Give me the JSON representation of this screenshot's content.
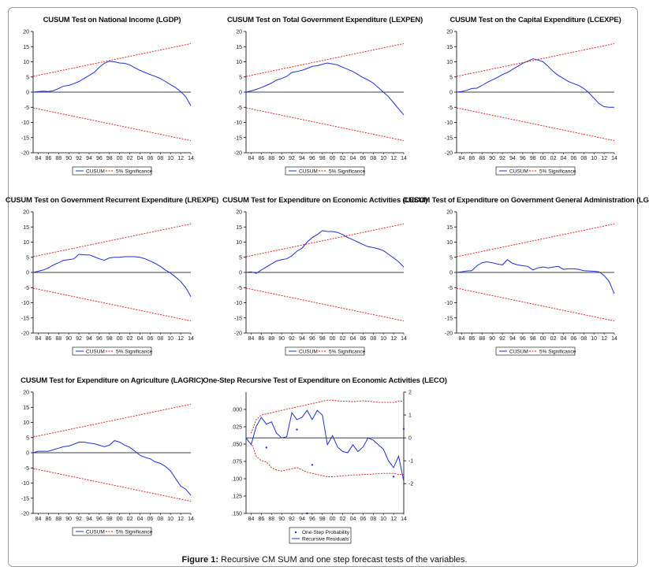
{
  "figure": {
    "caption_bold": "Figure 1:",
    "caption_text": " Recursive CM SUM and one step forecast tests of the variables."
  },
  "colors": {
    "cusum": "#1f2fd6",
    "bands": "#e01010",
    "axis": "#000000"
  },
  "years": [
    "84",
    "86",
    "88",
    "90",
    "92",
    "94",
    "96",
    "98",
    "00",
    "02",
    "04",
    "06",
    "08",
    "10",
    "12",
    "14"
  ],
  "chart_data": [
    {
      "type": "line",
      "title": "CUSUM Test on National Income (LGDP)",
      "ylim": [
        -20,
        20
      ],
      "yticks": [
        -20,
        -15,
        -10,
        -5,
        0,
        5,
        10,
        15,
        20
      ],
      "x": [
        1983,
        2014
      ],
      "legend": [
        "CUSUM",
        "5% Significance"
      ],
      "series": [
        {
          "name": "CUSUM",
          "x": [
            1983,
            1984,
            1985,
            1986,
            1987,
            1988,
            1989,
            1990,
            1991,
            1992,
            1993,
            1994,
            1995,
            1996,
            1997,
            1998,
            1999,
            2000,
            2001,
            2002,
            2003,
            2004,
            2005,
            2006,
            2007,
            2008,
            2009,
            2010,
            2011,
            2012,
            2013,
            2014
          ],
          "y": [
            0,
            0.2,
            0.3,
            0.2,
            0.5,
            1.2,
            2.0,
            2.2,
            2.8,
            3.5,
            4.5,
            5.5,
            6.5,
            8.2,
            9.5,
            10.2,
            10,
            9.6,
            9.5,
            9,
            8,
            7.2,
            6.5,
            5.8,
            5.2,
            4.5,
            3.5,
            2.5,
            1.5,
            0.2,
            -1.5,
            -4.5
          ]
        },
        {
          "name": "5% Significance upper",
          "x": [
            1983,
            2014
          ],
          "y": [
            5.2,
            16
          ]
        },
        {
          "name": "5% Significance lower",
          "x": [
            1983,
            2014
          ],
          "y": [
            -5.2,
            -16
          ]
        }
      ]
    },
    {
      "type": "line",
      "title": "CUSUM Test on Total Government Expenditure (LEXPEN)",
      "ylim": [
        -20,
        20
      ],
      "yticks": [
        -20,
        -15,
        -10,
        -5,
        0,
        5,
        10,
        15,
        20
      ],
      "x": [
        1983,
        2014
      ],
      "legend": [
        "CUSUM",
        "5% Significance"
      ],
      "series": [
        {
          "name": "CUSUM",
          "x": [
            1983,
            1984,
            1985,
            1986,
            1987,
            1988,
            1989,
            1990,
            1991,
            1992,
            1993,
            1994,
            1995,
            1996,
            1997,
            1998,
            1999,
            2000,
            2001,
            2002,
            2003,
            2004,
            2005,
            2006,
            2007,
            2008,
            2009,
            2010,
            2011,
            2012,
            2013,
            2014
          ],
          "y": [
            0,
            0.4,
            0.9,
            1.5,
            2.2,
            3.0,
            4.0,
            4.5,
            5.2,
            6.5,
            6.8,
            7.2,
            7.8,
            8.5,
            8.7,
            9.2,
            9.6,
            9.3,
            9,
            8.2,
            7.5,
            6.8,
            5.8,
            4.8,
            4,
            3,
            1.5,
            0,
            -1.5,
            -3.5,
            -5.5,
            -7.5
          ]
        },
        {
          "name": "5% Significance upper",
          "x": [
            1983,
            2014
          ],
          "y": [
            5.2,
            16
          ]
        },
        {
          "name": "5% Significance lower",
          "x": [
            1983,
            2014
          ],
          "y": [
            -5.2,
            -16
          ]
        }
      ]
    },
    {
      "type": "line",
      "title": "CUSUM Test on the Capital Expenditure (LCEXPE)",
      "ylim": [
        -20,
        20
      ],
      "yticks": [
        -20,
        -15,
        -10,
        -5,
        0,
        5,
        10,
        15,
        20
      ],
      "x": [
        1983,
        2014
      ],
      "legend": [
        "CUSUM",
        "5% Significance"
      ],
      "series": [
        {
          "name": "CUSUM",
          "x": [
            1983,
            1984,
            1985,
            1986,
            1987,
            1988,
            1989,
            1990,
            1991,
            1992,
            1993,
            1994,
            1995,
            1996,
            1997,
            1998,
            1999,
            2000,
            2001,
            2002,
            2003,
            2004,
            2005,
            2006,
            2007,
            2008,
            2009,
            2010,
            2011,
            2012,
            2013,
            2014
          ],
          "y": [
            0,
            0.2,
            0.6,
            1.2,
            1.3,
            2.2,
            3.2,
            4.0,
            4.8,
            5.8,
            6.5,
            7.5,
            8.5,
            9.5,
            10.2,
            11,
            10.6,
            10,
            8.5,
            6.8,
            5.5,
            4.5,
            3.5,
            2.8,
            2.2,
            1.2,
            -0.2,
            -2,
            -3.8,
            -4.8,
            -5,
            -5
          ]
        },
        {
          "name": "5% Significance upper",
          "x": [
            1983,
            2014
          ],
          "y": [
            5.2,
            16
          ]
        },
        {
          "name": "5% Significance lower",
          "x": [
            1983,
            2014
          ],
          "y": [
            -5.2,
            -16
          ]
        }
      ]
    },
    {
      "type": "line",
      "title": "CUSUM Test on Government Recurrent Expenditure (LREXPE)",
      "ylim": [
        -20,
        20
      ],
      "yticks": [
        -20,
        -15,
        -10,
        -5,
        0,
        5,
        10,
        15,
        20
      ],
      "x": [
        1983,
        2014
      ],
      "legend": [
        "CUSUM",
        "5% Significance"
      ],
      "series": [
        {
          "name": "CUSUM",
          "x": [
            1983,
            1984,
            1985,
            1986,
            1987,
            1988,
            1989,
            1990,
            1991,
            1992,
            1993,
            1994,
            1995,
            1996,
            1997,
            1998,
            1999,
            2000,
            2001,
            2002,
            2003,
            2004,
            2005,
            2006,
            2007,
            2008,
            2009,
            2010,
            2011,
            2012,
            2013,
            2014
          ],
          "y": [
            0,
            0.4,
            0.8,
            1.5,
            2.5,
            3.2,
            4.0,
            4.2,
            4.5,
            6.0,
            5.8,
            5.8,
            5.2,
            4.5,
            4,
            4.8,
            5,
            5,
            5.2,
            5.2,
            5.2,
            5,
            4.5,
            3.8,
            3,
            2,
            0.8,
            -0.2,
            -1.5,
            -3,
            -5,
            -8
          ]
        },
        {
          "name": "5% Significance upper",
          "x": [
            1983,
            2014
          ],
          "y": [
            5.2,
            16
          ]
        },
        {
          "name": "5% Significance lower",
          "x": [
            1983,
            2014
          ],
          "y": [
            -5.2,
            -16
          ]
        }
      ]
    },
    {
      "type": "line",
      "title": "CUSUM Test for Expenditure on Economic Activities (LECO)",
      "ylim": [
        -20,
        20
      ],
      "yticks": [
        -20,
        -15,
        -10,
        -5,
        0,
        5,
        10,
        15,
        20
      ],
      "x": [
        1983,
        2014
      ],
      "legend": [
        "CUSUM",
        "5% Significance"
      ],
      "series": [
        {
          "name": "CUSUM",
          "x": [
            1983,
            1984,
            1985,
            1986,
            1987,
            1988,
            1989,
            1990,
            1991,
            1992,
            1993,
            1994,
            1995,
            1996,
            1997,
            1998,
            1999,
            2000,
            2001,
            2002,
            2003,
            2004,
            2005,
            2006,
            2007,
            2008,
            2009,
            2010,
            2011,
            2012,
            2013,
            2014
          ],
          "y": [
            0,
            0.2,
            -0.3,
            0.8,
            1.8,
            2.8,
            3.8,
            4.2,
            4.5,
            5.5,
            7,
            8,
            10,
            11.5,
            12.5,
            13.8,
            13.5,
            13.5,
            13.2,
            12.5,
            11.5,
            10.8,
            10,
            9.2,
            8.5,
            8.2,
            7.8,
            7.2,
            6,
            4.8,
            3.5,
            1.8
          ]
        },
        {
          "name": "5% Significance upper",
          "x": [
            1983,
            2014
          ],
          "y": [
            5.2,
            16
          ]
        },
        {
          "name": "5% Significance lower",
          "x": [
            1983,
            2014
          ],
          "y": [
            -5.2,
            -16
          ]
        }
      ]
    },
    {
      "type": "line",
      "title": "CUSUM Test of Expenditure on Government General Administration (LGADM)",
      "ylim": [
        -20,
        20
      ],
      "yticks": [
        -20,
        -15,
        -10,
        -5,
        0,
        5,
        10,
        15,
        20
      ],
      "x": [
        1983,
        2014
      ],
      "legend": [
        "CUSUM",
        "5% Significance"
      ],
      "series": [
        {
          "name": "CUSUM",
          "x": [
            1983,
            1984,
            1985,
            1986,
            1987,
            1988,
            1989,
            1990,
            1991,
            1992,
            1993,
            1994,
            1995,
            1996,
            1997,
            1998,
            1999,
            2000,
            2001,
            2002,
            2003,
            2004,
            2005,
            2006,
            2007,
            2008,
            2009,
            2010,
            2011,
            2012,
            2013,
            2014
          ],
          "y": [
            0,
            0.2,
            0.5,
            0.6,
            2.2,
            3.2,
            3.5,
            3.2,
            2.8,
            2.5,
            4.2,
            3,
            2.5,
            2.2,
            2,
            0.8,
            1.5,
            1.8,
            1.5,
            1.8,
            2,
            1,
            1.2,
            1.2,
            1,
            0.6,
            0.5,
            0.4,
            0.2,
            -1,
            -3,
            -7
          ]
        },
        {
          "name": "5% Significance upper",
          "x": [
            1983,
            2014
          ],
          "y": [
            5.2,
            16
          ]
        },
        {
          "name": "5% Significance lower",
          "x": [
            1983,
            2014
          ],
          "y": [
            -5.2,
            -16
          ]
        }
      ]
    },
    {
      "type": "line",
      "title": "CUSUM Test for Expenditure on Agriculture (LAGRIC)",
      "ylim": [
        -20,
        20
      ],
      "yticks": [
        -20,
        -15,
        -10,
        -5,
        0,
        5,
        10,
        15,
        20
      ],
      "x": [
        1983,
        2014
      ],
      "legend": [
        "CUSUM",
        "5% Significance"
      ],
      "series": [
        {
          "name": "CUSUM",
          "x": [
            1983,
            1984,
            1985,
            1986,
            1987,
            1988,
            1989,
            1990,
            1991,
            1992,
            1993,
            1994,
            1995,
            1996,
            1997,
            1998,
            1999,
            2000,
            2001,
            2002,
            2003,
            2004,
            2005,
            2006,
            2007,
            2008,
            2009,
            2010,
            2011,
            2012,
            2013,
            2014
          ],
          "y": [
            0,
            0.5,
            0.5,
            0.5,
            1,
            1.5,
            2,
            2.2,
            2.8,
            3.5,
            3.5,
            3.2,
            3,
            2.5,
            2,
            2.5,
            4,
            3.5,
            2.5,
            1.8,
            0.5,
            -0.8,
            -1.5,
            -2,
            -3,
            -3.5,
            -4.5,
            -6,
            -8.5,
            -11,
            -12,
            -14
          ]
        },
        {
          "name": "5% Significance upper",
          "x": [
            1983,
            2014
          ],
          "y": [
            5.2,
            16
          ]
        },
        {
          "name": "5% Significance lower",
          "x": [
            1983,
            2014
          ],
          "y": [
            -5.2,
            -16
          ]
        }
      ]
    },
    {
      "type": "line",
      "title": "One-Step Recursive Test of Expenditure on Economic Activities (LECO)",
      "left_ylim": [
        0.15,
        -0.025
      ],
      "left_yticks": [
        ".000",
        ".025",
        ".050",
        ".075",
        ".100",
        ".125",
        ".150"
      ],
      "right_ylim": [
        -3.3,
        2
      ],
      "right_yticks": [
        "2",
        "1",
        "0",
        "-1",
        "-2"
      ],
      "x": [
        1983,
        2014
      ],
      "legend": [
        "One-Step Probability",
        "Recursive Residuals"
      ],
      "series": [
        {
          "name": "Recursive Residuals",
          "x": [
            1983,
            1984,
            1985,
            1986,
            1987,
            1988,
            1989,
            1990,
            1991,
            1992,
            1993,
            1994,
            1995,
            1996,
            1997,
            1998,
            1999,
            2000,
            2001,
            2002,
            2003,
            2004,
            2005,
            2006,
            2007,
            2008,
            2009,
            2010,
            2011,
            2012,
            2013,
            2014
          ],
          "y": [
            0,
            -0.3,
            0.5,
            0.9,
            0.6,
            0.7,
            0.2,
            0,
            0.05,
            1.1,
            0.8,
            0.9,
            1.2,
            0.8,
            1.2,
            1,
            -0.3,
            0.1,
            -0.4,
            -0.6,
            -0.65,
            -0.3,
            -0.6,
            -0.4,
            0,
            -0.1,
            -0.3,
            -0.5,
            -1,
            -1.3,
            -0.8,
            -1.9
          ]
        },
        {
          "name": "Upper band",
          "x": [
            1984,
            1985,
            1986,
            1987,
            1988,
            1989,
            1990,
            1991,
            1992,
            1993,
            1994,
            1995,
            1996,
            1997,
            1998,
            1999,
            2000,
            2001,
            2002,
            2003,
            2004,
            2005,
            2006,
            2007,
            2008,
            2009,
            2010,
            2011,
            2012,
            2013,
            2014
          ],
          "y": [
            0.2,
            0.8,
            1,
            1.05,
            1.1,
            1.15,
            1.2,
            1.25,
            1.3,
            1.35,
            1.4,
            1.45,
            1.5,
            1.55,
            1.6,
            1.65,
            1.65,
            1.62,
            1.6,
            1.6,
            1.58,
            1.6,
            1.62,
            1.6,
            1.58,
            1.55,
            1.55,
            1.55,
            1.55,
            1.6,
            1.6
          ]
        },
        {
          "name": "Lower band",
          "x": [
            1984,
            1985,
            1986,
            1987,
            1988,
            1989,
            1990,
            1991,
            1992,
            1993,
            1994,
            1995,
            1996,
            1997,
            1998,
            1999,
            2000,
            2001,
            2002,
            2003,
            2004,
            2005,
            2006,
            2007,
            2008,
            2009,
            2010,
            2011,
            2012,
            2013,
            2014
          ],
          "y": [
            -0.2,
            -0.8,
            -1,
            -1.05,
            -1.3,
            -1.4,
            -1.45,
            -1.4,
            -1.35,
            -1.3,
            -1.4,
            -1.5,
            -1.55,
            -1.6,
            -1.65,
            -1.7,
            -1.7,
            -1.68,
            -1.66,
            -1.64,
            -1.62,
            -1.62,
            -1.6,
            -1.6,
            -1.58,
            -1.56,
            -1.55,
            -1.55,
            -1.55,
            -1.6,
            -1.6
          ]
        },
        {
          "name": "One-Step Probability",
          "points": [
            [
              1987,
              0.055
            ],
            [
              1993,
              0.029
            ],
            [
              1995,
              0.15
            ],
            [
              1996,
              0.08
            ],
            [
              2012,
              0.097
            ],
            [
              2014,
              0.028
            ]
          ]
        }
      ]
    }
  ]
}
